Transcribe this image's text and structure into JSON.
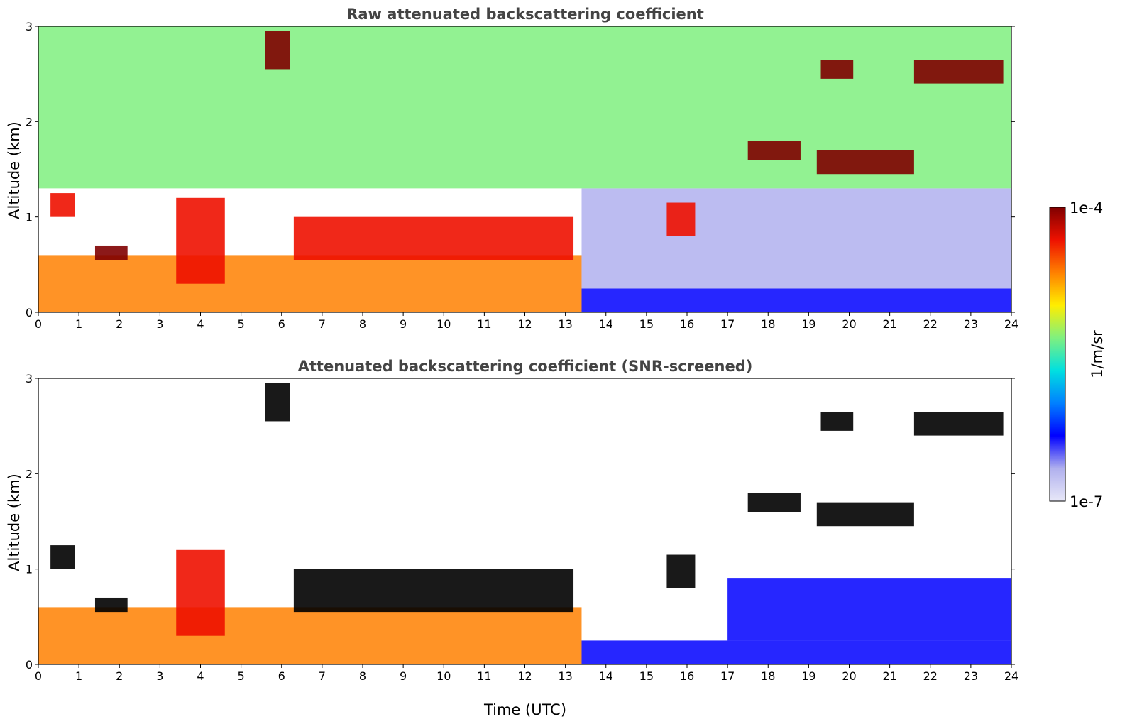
{
  "figure": {
    "colorbar": {
      "label": "1/m/sr",
      "max_label": "1e-4",
      "min_label": "1e-7",
      "scale": "log",
      "colormap": "jet",
      "colors": [
        "#e8e8f8",
        "#b0b0ee",
        "#0000ff",
        "#0080ff",
        "#00e0e0",
        "#7ff07f",
        "#ffee00",
        "#ff8000",
        "#ee1100",
        "#800000"
      ]
    }
  },
  "chart_data": [
    {
      "type": "heatmap",
      "title": "Raw attenuated backscattering coefficient",
      "xlabel": "",
      "ylabel": "Altitude (km)",
      "xlim": [
        0,
        24
      ],
      "ylim": [
        0,
        3
      ],
      "xticks": [
        "0",
        "1",
        "2",
        "3",
        "4",
        "5",
        "6",
        "7",
        "8",
        "9",
        "10",
        "11",
        "12",
        "13",
        "14",
        "15",
        "16",
        "17",
        "18",
        "19",
        "20",
        "21",
        "22",
        "23",
        "24"
      ],
      "yticks": [
        "0",
        "1",
        "2",
        "3"
      ],
      "layers": [
        {
          "x": [
            0,
            13.4
          ],
          "y": [
            0,
            0.6
          ],
          "color": "#ff8000"
        },
        {
          "x": [
            13.4,
            24
          ],
          "y": [
            0,
            0.25
          ],
          "color": "#0000ff"
        },
        {
          "x": [
            13.4,
            24
          ],
          "y": [
            0.25,
            1.3
          ],
          "color": "#b0b0ee"
        },
        {
          "x": [
            0,
            24
          ],
          "y": [
            1.3,
            3
          ],
          "color": "#7ff07f"
        }
      ],
      "cloud_layers": [
        {
          "x": [
            0.3,
            0.9
          ],
          "y": [
            1.0,
            1.25
          ],
          "color": "#ee1100"
        },
        {
          "x": [
            1.4,
            2.2
          ],
          "y": [
            0.55,
            0.7
          ],
          "color": "#800000"
        },
        {
          "x": [
            3.4,
            4.6
          ],
          "y": [
            0.3,
            1.2
          ],
          "color": "#ee1100"
        },
        {
          "x": [
            5.6,
            6.2
          ],
          "y": [
            2.55,
            2.95
          ],
          "color": "#800000"
        },
        {
          "x": [
            6.3,
            13.2
          ],
          "y": [
            0.55,
            1.0
          ],
          "color": "#ee1100"
        },
        {
          "x": [
            15.5,
            16.2
          ],
          "y": [
            0.8,
            1.15
          ],
          "color": "#ee1100"
        },
        {
          "x": [
            17.5,
            18.8
          ],
          "y": [
            1.6,
            1.8
          ],
          "color": "#800000"
        },
        {
          "x": [
            19.2,
            21.6
          ],
          "y": [
            1.45,
            1.7
          ],
          "color": "#800000"
        },
        {
          "x": [
            19.3,
            20.1
          ],
          "y": [
            2.45,
            2.65
          ],
          "color": "#800000"
        },
        {
          "x": [
            21.6,
            23.8
          ],
          "y": [
            2.4,
            2.65
          ],
          "color": "#800000"
        }
      ]
    },
    {
      "type": "heatmap",
      "title": "Attenuated backscattering coefficient (SNR-screened)",
      "xlabel": "Time (UTC)",
      "ylabel": "Altitude (km)",
      "xlim": [
        0,
        24
      ],
      "ylim": [
        0,
        3
      ],
      "xticks": [
        "0",
        "1",
        "2",
        "3",
        "4",
        "5",
        "6",
        "7",
        "8",
        "9",
        "10",
        "11",
        "12",
        "13",
        "14",
        "15",
        "16",
        "17",
        "18",
        "19",
        "20",
        "21",
        "22",
        "23",
        "24"
      ],
      "yticks": [
        "0",
        "1",
        "2",
        "3"
      ],
      "layers": [
        {
          "x": [
            0,
            13.4
          ],
          "y": [
            0,
            0.6
          ],
          "color": "#ff8000"
        },
        {
          "x": [
            13.4,
            24
          ],
          "y": [
            0,
            0.25
          ],
          "color": "#0000ff"
        },
        {
          "x": [
            17.0,
            24
          ],
          "y": [
            0.25,
            0.9
          ],
          "color": "#0000ff"
        }
      ],
      "cloud_layers": [
        {
          "x": [
            0.3,
            0.9
          ],
          "y": [
            1.0,
            1.25
          ],
          "color": "#000000"
        },
        {
          "x": [
            1.4,
            2.2
          ],
          "y": [
            0.55,
            0.7
          ],
          "color": "#000000"
        },
        {
          "x": [
            3.4,
            4.6
          ],
          "y": [
            0.3,
            1.2
          ],
          "color": "#ee1100"
        },
        {
          "x": [
            5.6,
            6.2
          ],
          "y": [
            2.55,
            2.95
          ],
          "color": "#000000"
        },
        {
          "x": [
            6.3,
            13.2
          ],
          "y": [
            0.55,
            1.0
          ],
          "color": "#000000"
        },
        {
          "x": [
            15.5,
            16.2
          ],
          "y": [
            0.8,
            1.15
          ],
          "color": "#000000"
        },
        {
          "x": [
            17.5,
            18.8
          ],
          "y": [
            1.6,
            1.8
          ],
          "color": "#000000"
        },
        {
          "x": [
            19.2,
            21.6
          ],
          "y": [
            1.45,
            1.7
          ],
          "color": "#000000"
        },
        {
          "x": [
            19.3,
            20.1
          ],
          "y": [
            2.45,
            2.65
          ],
          "color": "#000000"
        },
        {
          "x": [
            21.6,
            23.8
          ],
          "y": [
            2.4,
            2.65
          ],
          "color": "#000000"
        }
      ]
    }
  ]
}
